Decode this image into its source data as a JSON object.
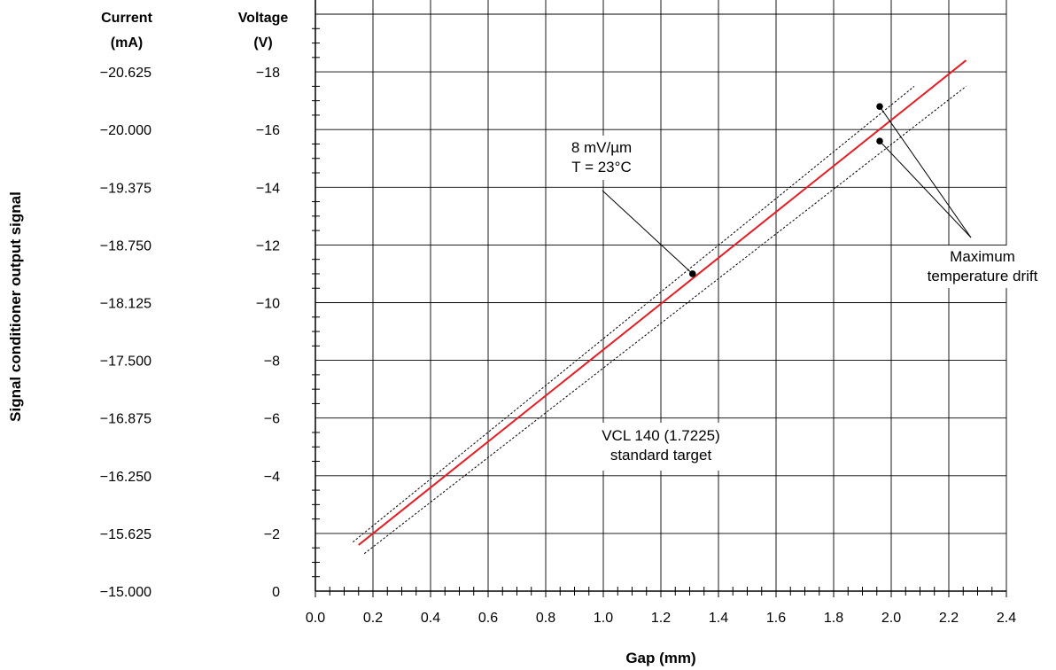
{
  "chart_data": {
    "type": "line",
    "xlabel": "Gap (mm)",
    "ylabel": "Signal conditioner output signal",
    "x_ticks": [
      "0.0",
      "0.2",
      "0.4",
      "0.6",
      "0.8",
      "1.0",
      "1.2",
      "1.4",
      "1.6",
      "1.8",
      "2.0",
      "2.2",
      "2.4"
    ],
    "xlim": [
      0,
      2.4
    ],
    "voltage_axis": {
      "header": [
        "Voltage",
        "(V)"
      ],
      "ticks": [
        "0",
        "−2",
        "−4",
        "−6",
        "−8",
        "−10",
        "−12",
        "−14",
        "−16",
        "−18"
      ],
      "ylim": [
        0,
        -18
      ]
    },
    "current_axis": {
      "header": [
        "Current",
        "(mA)"
      ],
      "ticks": [
        "−15.000",
        "−15.625",
        "−16.250",
        "−16.875",
        "−17.500",
        "−18.125",
        "−18.750",
        "−19.375",
        "−20.000",
        "−20.625"
      ],
      "ylim": [
        -15.0,
        -20.625
      ]
    },
    "grid": true,
    "series": [
      {
        "role": "nominal",
        "color": "#e31e24",
        "x": [
          0.15,
          2.26
        ],
        "y": [
          -1.6,
          -18.4
        ]
      },
      {
        "role": "upper-drift-bound",
        "color": "#000000",
        "dashed": true,
        "x": [
          0.13,
          2.08
        ],
        "y": [
          -1.7,
          -17.5
        ]
      },
      {
        "role": "lower-drift-bound",
        "color": "#000000",
        "dashed": true,
        "x": [
          0.17,
          2.26
        ],
        "y": [
          -1.3,
          -17.5
        ]
      }
    ],
    "annotations": [
      {
        "lines": [
          "8 mV/µm",
          "T = 23°C"
        ],
        "point": {
          "x": 1.31,
          "y": -11.0
        }
      },
      {
        "lines": [
          "Maximum",
          "temperature drift"
        ],
        "points": [
          {
            "x": 1.96,
            "y": -16.8
          },
          {
            "x": 1.96,
            "y": -15.6
          }
        ]
      },
      {
        "lines": [
          "VCL 140 (1.7225)",
          "standard target"
        ]
      }
    ]
  }
}
